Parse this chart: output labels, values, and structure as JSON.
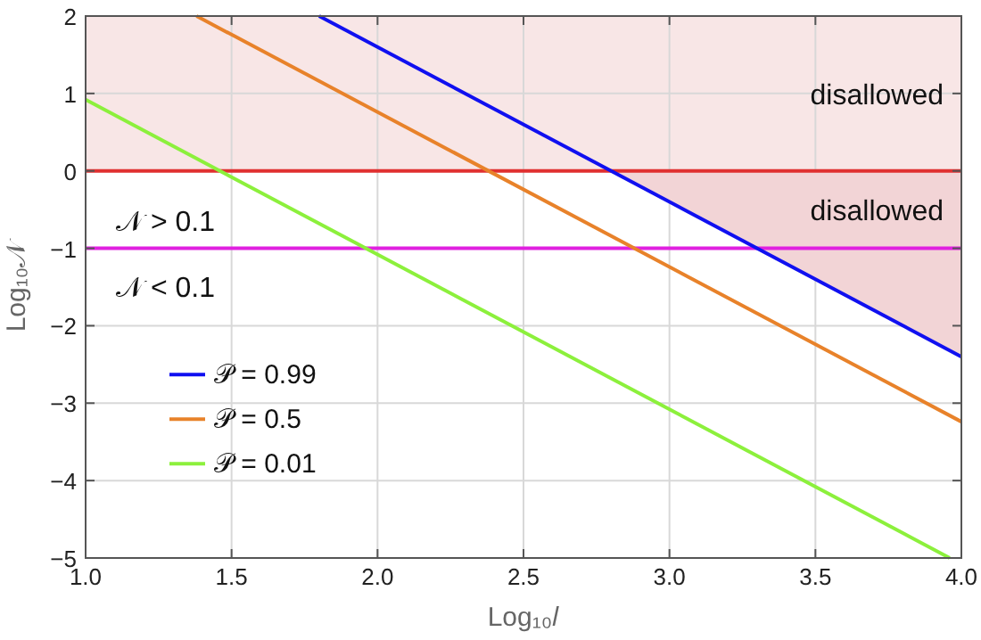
{
  "chart_data": {
    "type": "line",
    "xlabel": "Log₁₀𝑙",
    "ylabel": "Log₁₀𝒩",
    "xlim": [
      1,
      4
    ],
    "ylim": [
      -5,
      2
    ],
    "xticks": [
      {
        "value": 1,
        "label": "1.0"
      },
      {
        "value": 1.5,
        "label": "1.5"
      },
      {
        "value": 2,
        "label": "2.0"
      },
      {
        "value": 2.5,
        "label": "2.5"
      },
      {
        "value": 3,
        "label": "3.0"
      },
      {
        "value": 3.5,
        "label": "3.5"
      },
      {
        "value": 4,
        "label": "4.0"
      }
    ],
    "yticks": [
      -5,
      -4,
      -3,
      -2,
      -1,
      0,
      1,
      2
    ],
    "grid": true,
    "legend": "bottom left",
    "marker": "none",
    "line_style": "solid",
    "series": [
      {
        "type": "area",
        "color": "#f2d4d6",
        "x": [
          2.79,
          4
        ],
        "values": [
          0,
          -2.4
        ]
      },
      {
        "name": "𝒫 = 0.99",
        "color": "#1010f0",
        "x": [
          1.8,
          4
        ],
        "values": [
          2,
          -2.4
        ]
      },
      {
        "name": "𝒫 = 0.5",
        "color": "#e8822a",
        "x": [
          1.38,
          4
        ],
        "values": [
          2,
          -3.24
        ]
      },
      {
        "name": "𝒫 = 0.01",
        "color": "#8cf03c",
        "x": [
          1,
          3.96
        ],
        "values": [
          0.92,
          -5
        ]
      }
    ],
    "bands": [
      {
        "axis": "y",
        "from": 0,
        "to": 2,
        "label": "disallowed",
        "color": "#f8e6e6"
      }
    ],
    "ref_lines": [
      {
        "axis": "y",
        "value": 0,
        "color": "#e03030"
      },
      {
        "axis": "y",
        "value": -1,
        "color": "#e020e0"
      }
    ],
    "annotations": [
      "disallowed",
      "𝒩 > 0.1",
      "𝒩 < 0.1"
    ]
  }
}
